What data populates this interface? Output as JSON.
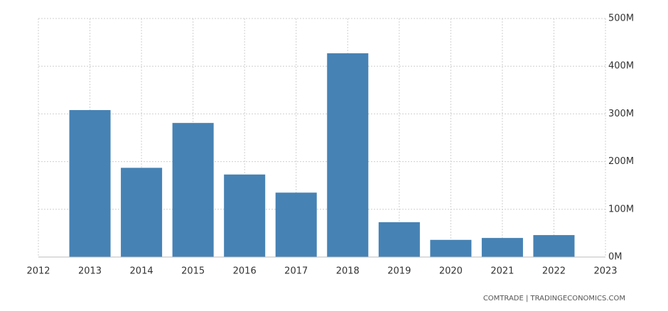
{
  "chart_data": {
    "type": "bar",
    "x": [
      2013,
      2014,
      2015,
      2016,
      2017,
      2018,
      2019,
      2020,
      2021,
      2022
    ],
    "values": [
      308,
      187,
      281,
      173,
      135,
      427,
      73,
      36,
      40,
      46
    ],
    "color": "#4682b4",
    "xlim": [
      2012,
      2023
    ],
    "xticks": [
      2012,
      2013,
      2014,
      2015,
      2016,
      2017,
      2018,
      2019,
      2020,
      2021,
      2022,
      2023
    ],
    "ylim": [
      0,
      500
    ],
    "yticks": [
      {
        "value": 0,
        "label": "0M"
      },
      {
        "value": 100,
        "label": "100M"
      },
      {
        "value": 200,
        "label": "200M"
      },
      {
        "value": 300,
        "label": "300M"
      },
      {
        "value": 400,
        "label": "400M"
      },
      {
        "value": 500,
        "label": "500M"
      }
    ],
    "grid": true,
    "source": "COMTRADE | TRADINGECONOMICS.COM"
  }
}
